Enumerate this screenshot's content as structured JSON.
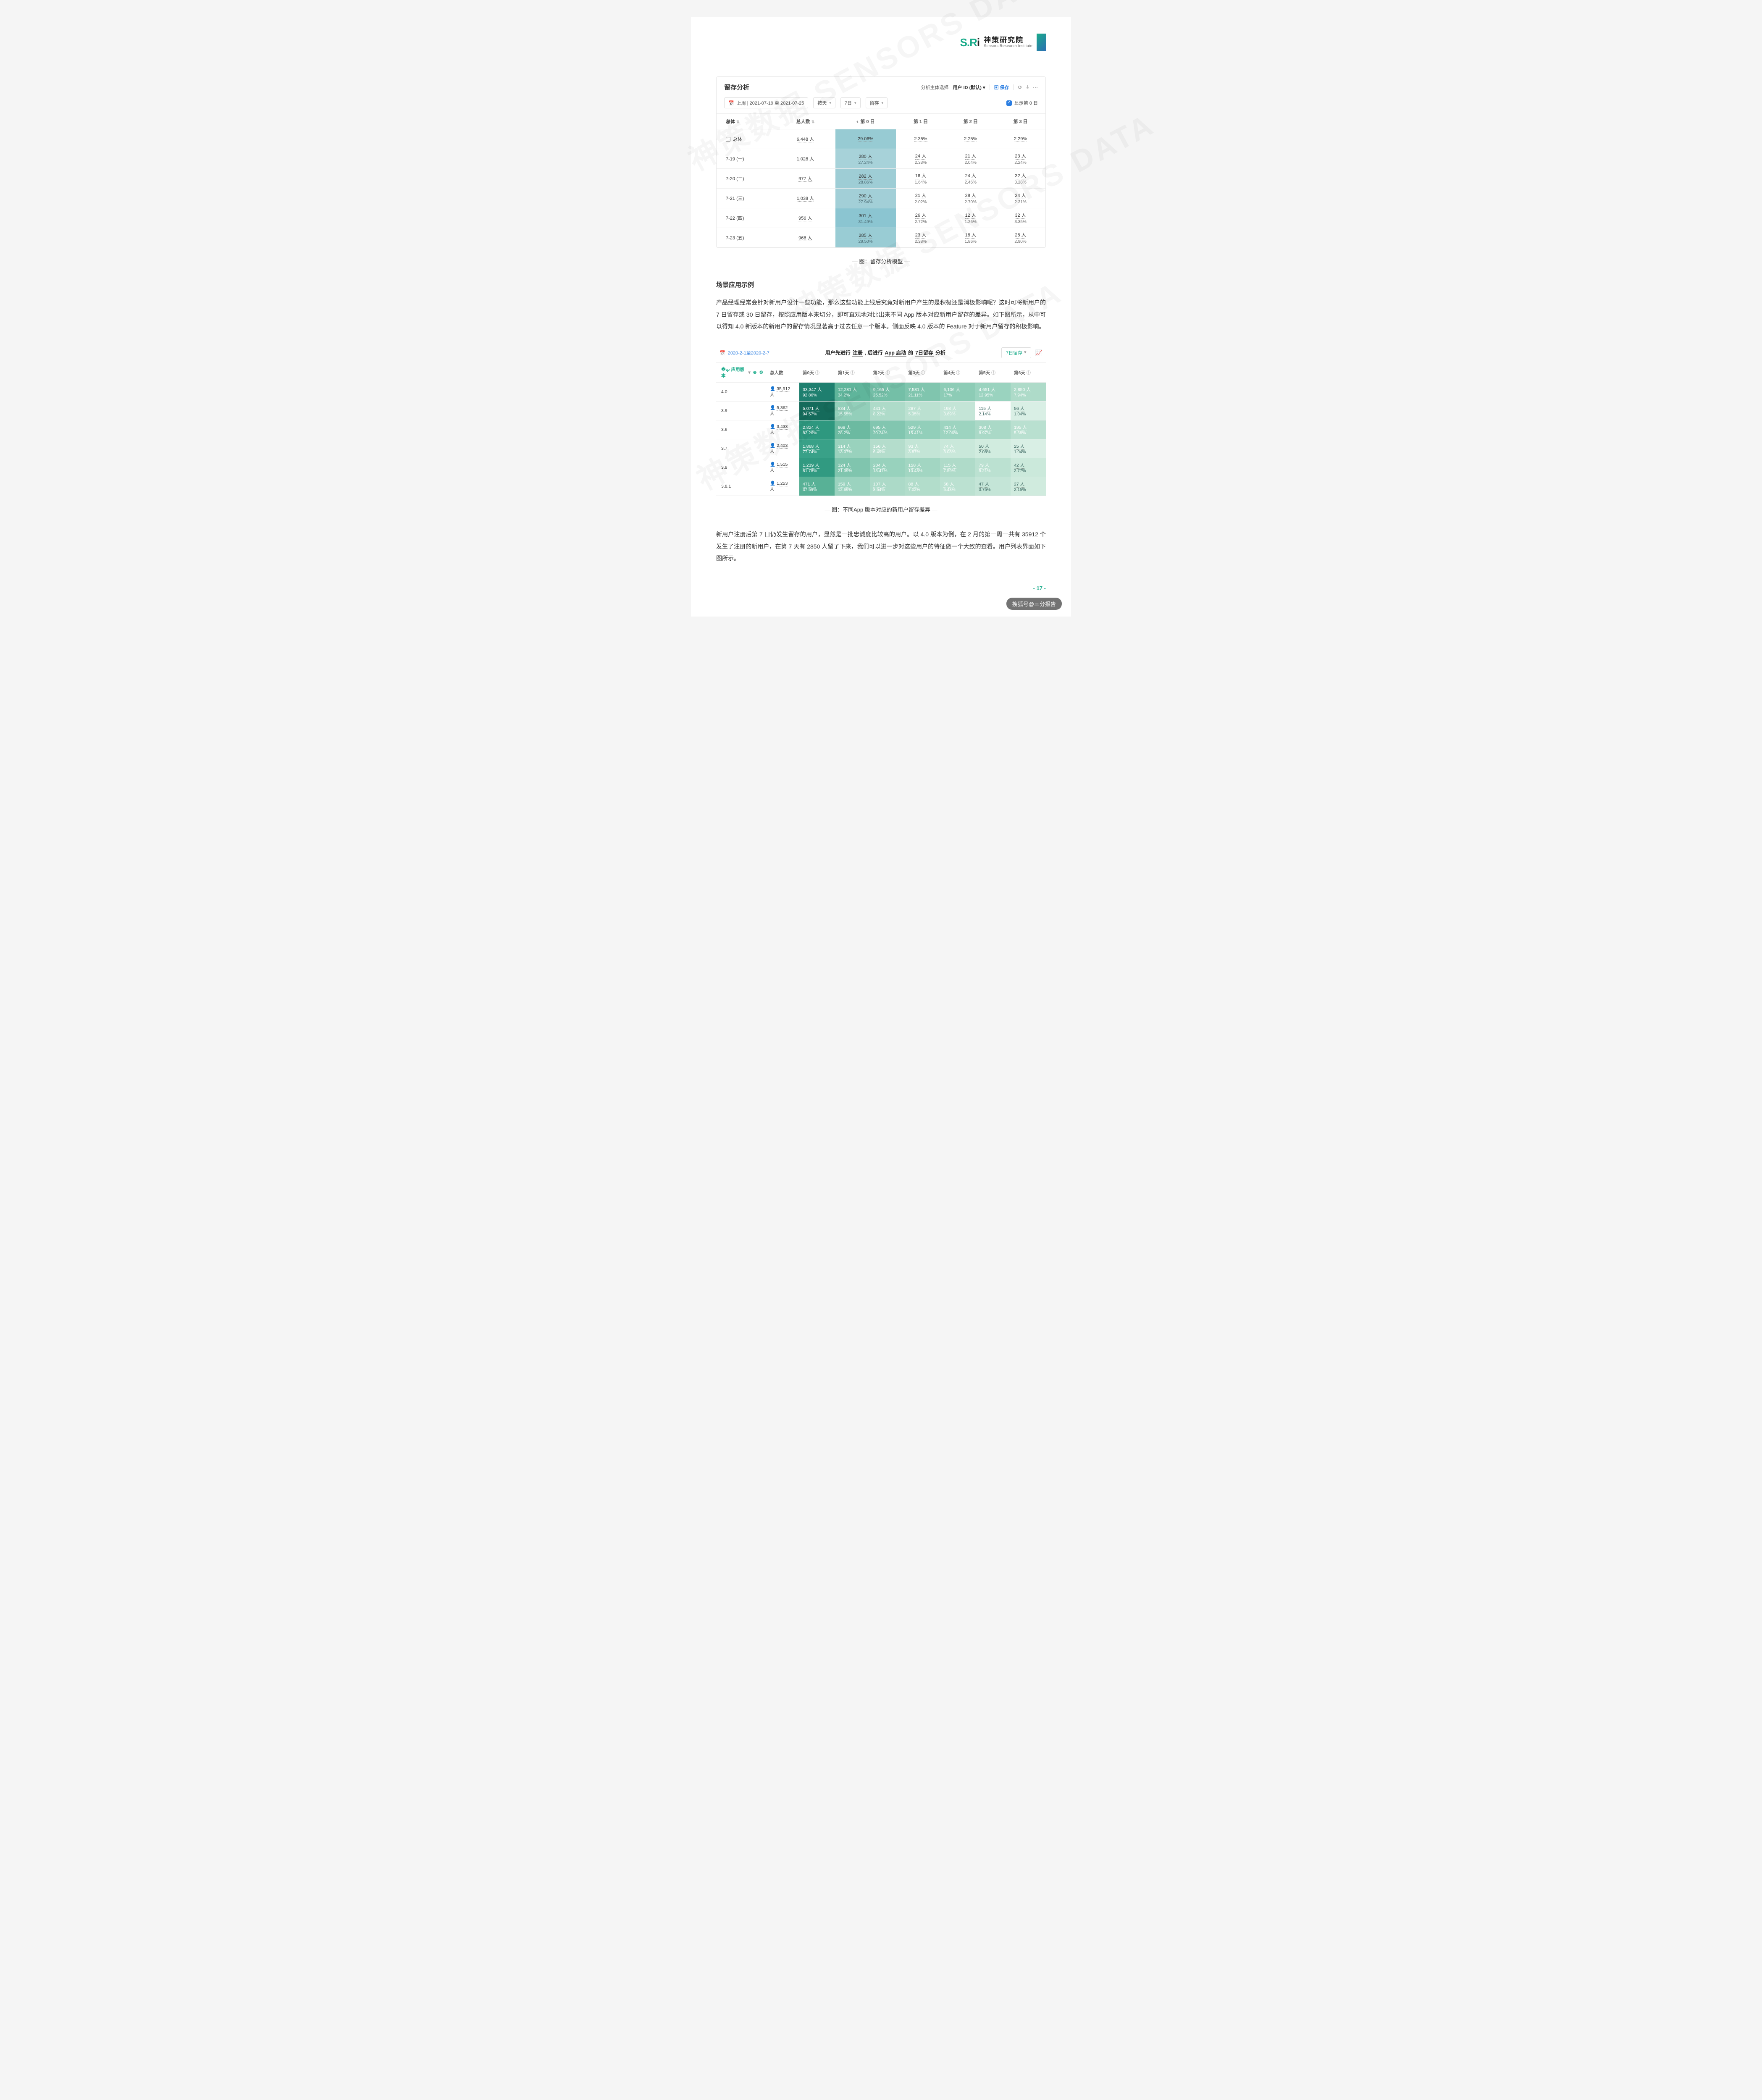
{
  "logo": {
    "brand_mark": "S.Ri",
    "cn": "神策研究院",
    "en": "Sensors Research Institute"
  },
  "panel1": {
    "title": "留存分析",
    "subject_label": "分析主体选择",
    "subject_value": "用户 ID (默认)",
    "save": "保存",
    "filters": {
      "date_label": "上周 | 2021-07-19 至 2021-07-25",
      "f1": "按天",
      "f2": "7日",
      "f3": "留存",
      "show_day0": "显示第 0 日"
    },
    "columns": [
      "总体",
      "总人数",
      "第 0 日",
      "第 1 日",
      "第 2 日",
      "第 3 日"
    ],
    "total_row": {
      "label": "总体",
      "total": "6,448 人",
      "d0": "29.06%",
      "d1": "2.35%",
      "d2": "2.25%",
      "d3": "2.29%"
    },
    "rows": [
      {
        "label": "7-19 (一)",
        "total": "1,028 人",
        "d0_n": "280 人",
        "d0_p": "27.24%",
        "d1_n": "24 人",
        "d1_p": "2.33%",
        "d2_n": "21 人",
        "d2_p": "2.04%",
        "d3_n": "23 人",
        "d3_p": "2.24%",
        "d0_color": "#a7d2d9"
      },
      {
        "label": "7-20 (二)",
        "total": "977 人",
        "d0_n": "282 人",
        "d0_p": "28.86%",
        "d1_n": "16 人",
        "d1_p": "1.64%",
        "d2_n": "24 人",
        "d2_p": "2.46%",
        "d3_n": "32 人",
        "d3_p": "3.28%",
        "d0_color": "#9ecdd5"
      },
      {
        "label": "7-21 (三)",
        "total": "1,038 人",
        "d0_n": "290 人",
        "d0_p": "27.94%",
        "d1_n": "21 人",
        "d1_p": "2.02%",
        "d2_n": "28 人",
        "d2_p": "2.70%",
        "d3_n": "24 人",
        "d3_p": "2.31%",
        "d0_color": "#a2cfd7"
      },
      {
        "label": "7-22 (四)",
        "total": "956 人",
        "d0_n": "301 人",
        "d0_p": "31.49%",
        "d1_n": "26 人",
        "d1_p": "2.72%",
        "d2_n": "12 人",
        "d2_p": "1.26%",
        "d3_n": "32 人",
        "d3_p": "3.35%",
        "d0_color": "#8bc5d1"
      },
      {
        "label": "7-23 (五)",
        "total": "966 人",
        "d0_n": "285 人",
        "d0_p": "29.50%",
        "d1_n": "23 人",
        "d1_p": "2.38%",
        "d2_n": "18 人",
        "d2_p": "1.86%",
        "d3_n": "28 人",
        "d3_p": "2.90%",
        "d0_color": "#99ccd4"
      }
    ],
    "total_d0_color": "#97cbd3",
    "caption": "— 图：留存分析模型 —"
  },
  "section_title": "场景应用示例",
  "para1": "产品经理经常会针对新用户设计一些功能，那么这些功能上线后究竟对新用户产生的是积极还是消极影响呢？这时可将新用户的 7 日留存或 30 日留存，按照应用版本来切分，即可直观地对比出来不同 App 版本对应新用户留存的差异。如下图所示，从中可以得知 4.0 新版本的新用户的留存情况显著高于过去任意一个版本。侧面反映 4.0 版本的 Feature 对于新用户留存的积极影响。",
  "panel2": {
    "date": "2020-2-1至2020-2-7",
    "title_parts": [
      "用户先进行",
      "注册",
      ", 后进行",
      "App 启动",
      "的",
      "7日留存",
      "分析"
    ],
    "right_btn": "7日留存",
    "header_first": "应用版本",
    "columns": [
      "总人数",
      "第0天",
      "第1天",
      "第2天",
      "第3天",
      "第4天",
      "第5天",
      "第6天"
    ],
    "rows": [
      {
        "ver": "4.0",
        "total": "35,912 人",
        "cells": [
          {
            "n": "33,347 人",
            "p": "92.86%",
            "c": "#1e7f6f"
          },
          {
            "n": "12,281 人",
            "p": "34.2%",
            "c": "#5fb59b"
          },
          {
            "n": "9,165 人",
            "p": "25.52%",
            "c": "#74bfa7"
          },
          {
            "n": "7,581 人",
            "p": "21.11%",
            "c": "#80c5ae"
          },
          {
            "n": "6,106 人",
            "p": "17%",
            "c": "#8dccb6"
          },
          {
            "n": "4,651 人",
            "p": "12.95%",
            "c": "#9ad3bf"
          },
          {
            "n": "2,850 人",
            "p": "7.94%",
            "c": "#aedbc9"
          }
        ]
      },
      {
        "ver": "3.9",
        "total": "5,362 人",
        "cells": [
          {
            "n": "5,071 人",
            "p": "94.57%",
            "c": "#156b5b"
          },
          {
            "n": "834 人",
            "p": "15.55%",
            "c": "#93cfba"
          },
          {
            "n": "441 人",
            "p": "8.22%",
            "c": "#aedbc9"
          },
          {
            "n": "287 人",
            "p": "5.35%",
            "c": "#bbe1d1"
          },
          {
            "n": "198 人",
            "p": "3.69%",
            "c": "#c4e5d7"
          },
          {
            "n": "115 人",
            "p": "2.14%",
            "c": "#cfead e",
            "cTxt": "lt"
          },
          {
            "n": "56 人",
            "p": "1.04%",
            "c": "#d9efe5",
            "cTxt": "lt"
          }
        ]
      },
      {
        "ver": "3.6",
        "total": "3,433 人",
        "cells": [
          {
            "n": "2,824 人",
            "p": "82.26%",
            "c": "#2e987f"
          },
          {
            "n": "968 人",
            "p": "28.2%",
            "c": "#6cbaa1"
          },
          {
            "n": "695 人",
            "p": "20.24%",
            "c": "#82c6b0"
          },
          {
            "n": "529 人",
            "p": "15.41%",
            "c": "#92cfba"
          },
          {
            "n": "414 人",
            "p": "12.06%",
            "c": "#9dd4c0"
          },
          {
            "n": "308 人",
            "p": "8.97%",
            "c": "#aad9c7"
          },
          {
            "n": "195 人",
            "p": "5.68%",
            "c": "#b9e0d0"
          }
        ]
      },
      {
        "ver": "3.7",
        "total": "2,403 人",
        "cells": [
          {
            "n": "1,868 人",
            "p": "77.74%",
            "c": "#39a188"
          },
          {
            "n": "314 人",
            "p": "13.07%",
            "c": "#99d2bd"
          },
          {
            "n": "156 人",
            "p": "6.49%",
            "c": "#b4ddcc"
          },
          {
            "n": "93 人",
            "p": "3.87%",
            "c": "#c3e5d6"
          },
          {
            "n": "74 人",
            "p": "3.08%",
            "c": "#c9e8da"
          },
          {
            "n": "50 人",
            "p": "2.08%",
            "c": "#d1ecdf",
            "cTxt": "lt"
          },
          {
            "n": "25 人",
            "p": "1.04%",
            "c": "#d9efe5",
            "cTxt": "lt"
          }
        ]
      },
      {
        "ver": "3.8",
        "total": "1,515 人",
        "cells": [
          {
            "n": "1,239 人",
            "p": "81.78%",
            "c": "#319a81"
          },
          {
            "n": "324 人",
            "p": "21.39%",
            "c": "#80c5ae"
          },
          {
            "n": "204 人",
            "p": "13.47%",
            "c": "#98d2bd"
          },
          {
            "n": "158 人",
            "p": "10.43%",
            "c": "#a2d6c2"
          },
          {
            "n": "115 人",
            "p": "7.59%",
            "c": "#afdbc9"
          },
          {
            "n": "79 人",
            "p": "5.21%",
            "c": "#bbe1d1"
          },
          {
            "n": "42 人",
            "p": "2.77%",
            "c": "#cbe9db",
            "cTxt": "lt"
          }
        ]
      },
      {
        "ver": "3.8.1",
        "total": "1,253 人",
        "cells": [
          {
            "n": "471 人",
            "p": "37.59%",
            "c": "#58b196"
          },
          {
            "n": "159 人",
            "p": "12.69%",
            "c": "#9bd3bf"
          },
          {
            "n": "107 人",
            "p": "8.54%",
            "c": "#acdac8"
          },
          {
            "n": "88 人",
            "p": "7.02%",
            "c": "#b2ddcb"
          },
          {
            "n": "68 人",
            "p": "5.43%",
            "c": "#bbe1d1"
          },
          {
            "n": "47 人",
            "p": "3.75%",
            "c": "#c4e5d7",
            "cTxt": "lt"
          },
          {
            "n": "27 人",
            "p": "2.15%",
            "c": "#d0ebde",
            "cTxt": "lt"
          }
        ]
      }
    ],
    "caption": "— 图：不同App 版本对应的新用户留存差异 —"
  },
  "para2": "新用户注册后第 7 日仍发生留存的用户，显然是一批忠诚度比较高的用户。以 4.0 版本为例，在 2 月的第一周一共有 35912 个发生了注册的新用户，在第 7 天有 2850 人留了下来，我们可以进一步对这些用户的特征做一个大致的查看。用户列表界面如下图所示。",
  "page_number": "- 17 -",
  "credit": "搜狐号@三分报告",
  "watermark": "神策数据  SENSORS DATA"
}
